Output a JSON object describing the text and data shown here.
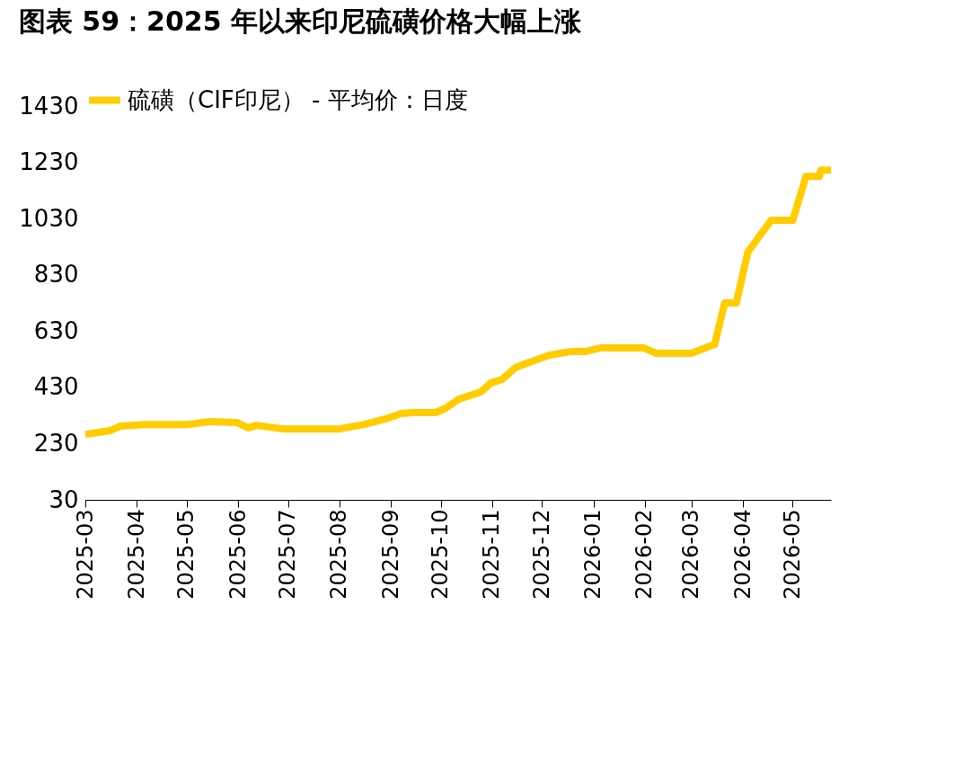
{
  "chart_data": {
    "type": "line",
    "title": "图表 59：2025 年以来印尼硫磺价格大幅上涨",
    "x": [
      "2025-03-01",
      "2025-03-16",
      "2025-03-22",
      "2025-04-06",
      "2025-05-02",
      "2025-05-15",
      "2025-05-31",
      "2025-06-07",
      "2025-06-12",
      "2025-06-28",
      "2025-08-01",
      "2025-08-16",
      "2025-08-29",
      "2025-09-07",
      "2025-09-15",
      "2025-09-28",
      "2025-10-04",
      "2025-10-12",
      "2025-10-25",
      "2025-10-31",
      "2025-11-07",
      "2025-11-15",
      "2025-11-22",
      "2025-12-05",
      "2025-12-18",
      "2025-12-27",
      "2026-01-05",
      "2026-01-31",
      "2026-02-08",
      "2026-03-01",
      "2026-03-15",
      "2026-03-21",
      "2026-03-28",
      "2026-04-04",
      "2026-04-18",
      "2026-05-01",
      "2026-05-09",
      "2026-05-17",
      "2026-05-18",
      "2026-05-24"
    ],
    "series": [
      {
        "name": "硫磺（CIF印尼） - 平均价：日度",
        "color": "#ffcc00",
        "values": [
          263,
          276,
          292,
          298,
          298,
          308,
          305,
          286,
          295,
          282,
          282,
          298,
          318,
          337,
          340,
          340,
          356,
          388,
          413,
          445,
          458,
          500,
          516,
          544,
          557,
          557,
          570,
          570,
          551,
          551,
          583,
          730,
          730,
          912,
          1024,
          1024,
          1180,
          1180,
          1202,
          1202
        ]
      }
    ],
    "xlim": [
      "2025-03-01",
      "2026-05-24"
    ],
    "xticks": [
      "2025-03",
      "2025-04",
      "2025-05",
      "2025-06",
      "2025-07",
      "2025-08",
      "2025-09",
      "2025-10",
      "2025-11",
      "2025-12",
      "2026-01",
      "2026-02",
      "2026-03",
      "2026-04",
      "2026-05"
    ],
    "ylim": [
      30,
      1430
    ],
    "yticks": [
      30,
      230,
      430,
      630,
      830,
      1030,
      1230,
      1430
    ],
    "grid": false,
    "legend": "top",
    "marker": "none",
    "line_style": "solid"
  }
}
